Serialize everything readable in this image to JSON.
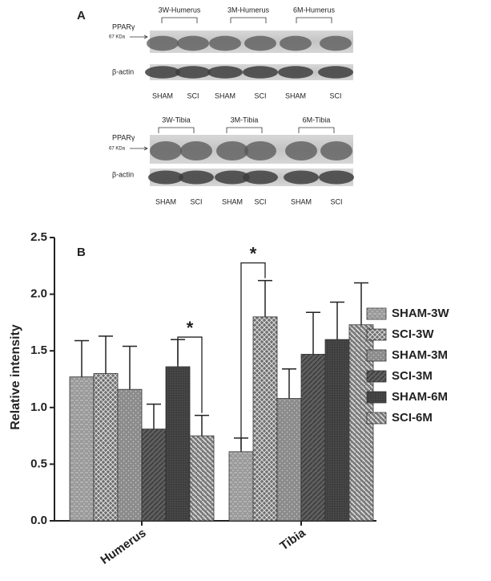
{
  "panel_a": {
    "label": "A",
    "blots": [
      {
        "group_labels": [
          "3W-Humerus",
          "3M-Humerus",
          "6M-Humerus"
        ],
        "target": "PPARγ",
        "marker": "67 KDa",
        "control": "β-actin",
        "lanes": [
          "SHAM",
          "SCI",
          "SHAM",
          "SCI",
          "SHAM",
          "SCI"
        ]
      },
      {
        "group_labels": [
          "3W-Tibia",
          "3M-Tibia",
          "6M-Tibia"
        ],
        "target": "PPARγ",
        "marker": "67 KDa",
        "control": "β-actin",
        "lanes": [
          "SHAM",
          "SCI",
          "SHAM",
          "SCI",
          "SHAM",
          "SCI"
        ]
      }
    ]
  },
  "chart_data": {
    "type": "bar",
    "panel_label": "B",
    "y_label": "Relative intensity",
    "categories": [
      "Humerus",
      "Tibia"
    ],
    "series": [
      {
        "name": "SHAM-3W",
        "color": "#9a9a9a",
        "values": [
          1.27,
          0.61
        ],
        "errors": [
          0.32,
          0.12
        ]
      },
      {
        "name": "SCI-3W",
        "color": "#6e6e6e",
        "values": [
          1.3,
          1.8
        ],
        "errors": [
          0.33,
          0.32
        ]
      },
      {
        "name": "SHAM-3M",
        "color": "#8c8c8c",
        "values": [
          1.16,
          1.08
        ],
        "errors": [
          0.38,
          0.26
        ]
      },
      {
        "name": "SCI-3M",
        "color": "#5e5e5e",
        "values": [
          0.81,
          1.47
        ],
        "errors": [
          0.22,
          0.37
        ]
      },
      {
        "name": "SHAM-6M",
        "color": "#4e4e4e",
        "values": [
          1.36,
          1.6
        ],
        "errors": [
          0.24,
          0.33
        ]
      },
      {
        "name": "SCI-6M",
        "color": "#7a7a7a",
        "values": [
          0.75,
          1.73
        ],
        "errors": [
          0.18,
          0.37
        ]
      }
    ],
    "annotations": [
      "*",
      "*"
    ],
    "ylim": [
      0,
      2.5
    ],
    "yticks": [
      {
        "value": 0,
        "label": "0.0"
      },
      0.5,
      {
        "value": 1,
        "label": "1.0"
      },
      1.5,
      {
        "value": 2,
        "label": "2.0"
      },
      2.5
    ]
  }
}
